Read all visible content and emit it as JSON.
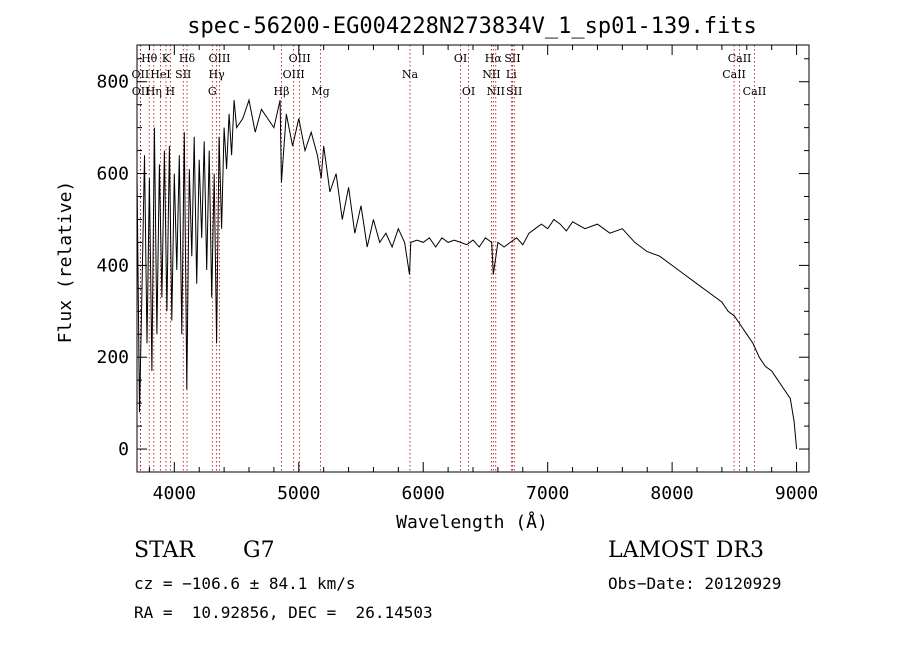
{
  "chart_data": {
    "type": "line",
    "title": "spec-56200-EG004228N273834V_1_sp01-139.fits",
    "xlabel": "Wavelength (Å)",
    "ylabel": "Flux (relative)",
    "xlim": [
      3700,
      9100
    ],
    "ylim": [
      -50,
      880
    ],
    "x_ticks": [
      4000,
      5000,
      6000,
      7000,
      8000,
      9000
    ],
    "y_ticks": [
      0,
      200,
      400,
      600,
      800
    ],
    "series": [
      {
        "name": "flux",
        "x": [
          3700,
          3720,
          3740,
          3760,
          3780,
          3800,
          3820,
          3840,
          3860,
          3880,
          3900,
          3920,
          3940,
          3960,
          3980,
          4000,
          4020,
          4040,
          4060,
          4080,
          4100,
          4120,
          4140,
          4160,
          4180,
          4200,
          4220,
          4240,
          4260,
          4280,
          4300,
          4320,
          4340,
          4360,
          4380,
          4400,
          4420,
          4440,
          4460,
          4480,
          4500,
          4550,
          4600,
          4650,
          4700,
          4750,
          4800,
          4850,
          4860,
          4900,
          4950,
          5000,
          5050,
          5100,
          5150,
          5180,
          5200,
          5250,
          5300,
          5350,
          5400,
          5450,
          5500,
          5550,
          5600,
          5650,
          5700,
          5750,
          5800,
          5850,
          5890,
          5900,
          5950,
          6000,
          6050,
          6100,
          6150,
          6200,
          6250,
          6300,
          6350,
          6400,
          6450,
          6500,
          6550,
          6563,
          6600,
          6650,
          6700,
          6750,
          6800,
          6850,
          6900,
          6950,
          7000,
          7050,
          7100,
          7150,
          7200,
          7300,
          7400,
          7500,
          7600,
          7700,
          7800,
          7900,
          8000,
          8100,
          8200,
          8300,
          8400,
          8450,
          8500,
          8550,
          8600,
          8650,
          8700,
          8750,
          8800,
          8850,
          8900,
          8950,
          8980,
          9000
        ],
        "y": [
          600,
          80,
          350,
          640,
          230,
          590,
          170,
          700,
          250,
          620,
          330,
          650,
          300,
          660,
          280,
          600,
          390,
          640,
          250,
          690,
          130,
          610,
          420,
          680,
          360,
          630,
          460,
          670,
          390,
          650,
          330,
          600,
          230,
          680,
          480,
          700,
          610,
          730,
          640,
          760,
          700,
          720,
          760,
          690,
          740,
          720,
          700,
          760,
          580,
          730,
          660,
          720,
          650,
          690,
          640,
          590,
          660,
          560,
          600,
          500,
          570,
          470,
          530,
          440,
          500,
          450,
          470,
          440,
          480,
          450,
          380,
          450,
          455,
          450,
          460,
          440,
          460,
          450,
          455,
          450,
          445,
          455,
          440,
          460,
          450,
          380,
          450,
          440,
          450,
          460,
          445,
          470,
          480,
          490,
          480,
          500,
          490,
          475,
          495,
          480,
          490,
          470,
          480,
          450,
          430,
          420,
          400,
          380,
          360,
          340,
          320,
          300,
          290,
          270,
          250,
          230,
          200,
          180,
          170,
          150,
          130,
          110,
          60,
          0
        ]
      }
    ],
    "line_markers": [
      {
        "label": "Hθ",
        "x": 3798,
        "row": 1
      },
      {
        "label": "OII",
        "x": 3727,
        "row": 2
      },
      {
        "label": "OII",
        "x": 3729,
        "row": 3
      },
      {
        "label": "Hη",
        "x": 3835,
        "row": 3
      },
      {
        "label": "K",
        "x": 3933,
        "row": 1
      },
      {
        "label": "HeI",
        "x": 3889,
        "row": 2
      },
      {
        "label": "H",
        "x": 3968,
        "row": 3
      },
      {
        "label": "SII",
        "x": 4072,
        "row": 2
      },
      {
        "label": "Hδ",
        "x": 4102,
        "row": 1
      },
      {
        "label": "OIII",
        "x": 4363,
        "row": 1
      },
      {
        "label": "Hγ",
        "x": 4340,
        "row": 2
      },
      {
        "label": "G",
        "x": 4305,
        "row": 3
      },
      {
        "label": "Hβ",
        "x": 4861,
        "row": 3
      },
      {
        "label": "OIII",
        "x": 5007,
        "row": 1
      },
      {
        "label": "OIII",
        "x": 4959,
        "row": 2
      },
      {
        "label": "Mg",
        "x": 5175,
        "row": 3
      },
      {
        "label": "Na",
        "x": 5894,
        "row": 2
      },
      {
        "label": "OI",
        "x": 6300,
        "row": 1
      },
      {
        "label": "OI",
        "x": 6364,
        "row": 3
      },
      {
        "label": "Hα",
        "x": 6563,
        "row": 1
      },
      {
        "label": "NII",
        "x": 6548,
        "row": 2
      },
      {
        "label": "NII",
        "x": 6583,
        "row": 3
      },
      {
        "label": "SII",
        "x": 6717,
        "row": 1
      },
      {
        "label": "Li",
        "x": 6708,
        "row": 2
      },
      {
        "label": "SII",
        "x": 6731,
        "row": 3
      },
      {
        "label": "CaII",
        "x": 8542,
        "row": 1
      },
      {
        "label": "CaII",
        "x": 8498,
        "row": 2
      },
      {
        "label": "CaII",
        "x": 8662,
        "row": 3
      }
    ]
  },
  "footer": {
    "class_label": "STAR",
    "subclass": "G7",
    "survey": "LAMOST DR3",
    "cz": "cz = −106.6 ± 84.1 km/s",
    "obs_date": "Obs−Date: 20120929",
    "coords": "RA =  10.92856, DEC =  26.14503"
  }
}
